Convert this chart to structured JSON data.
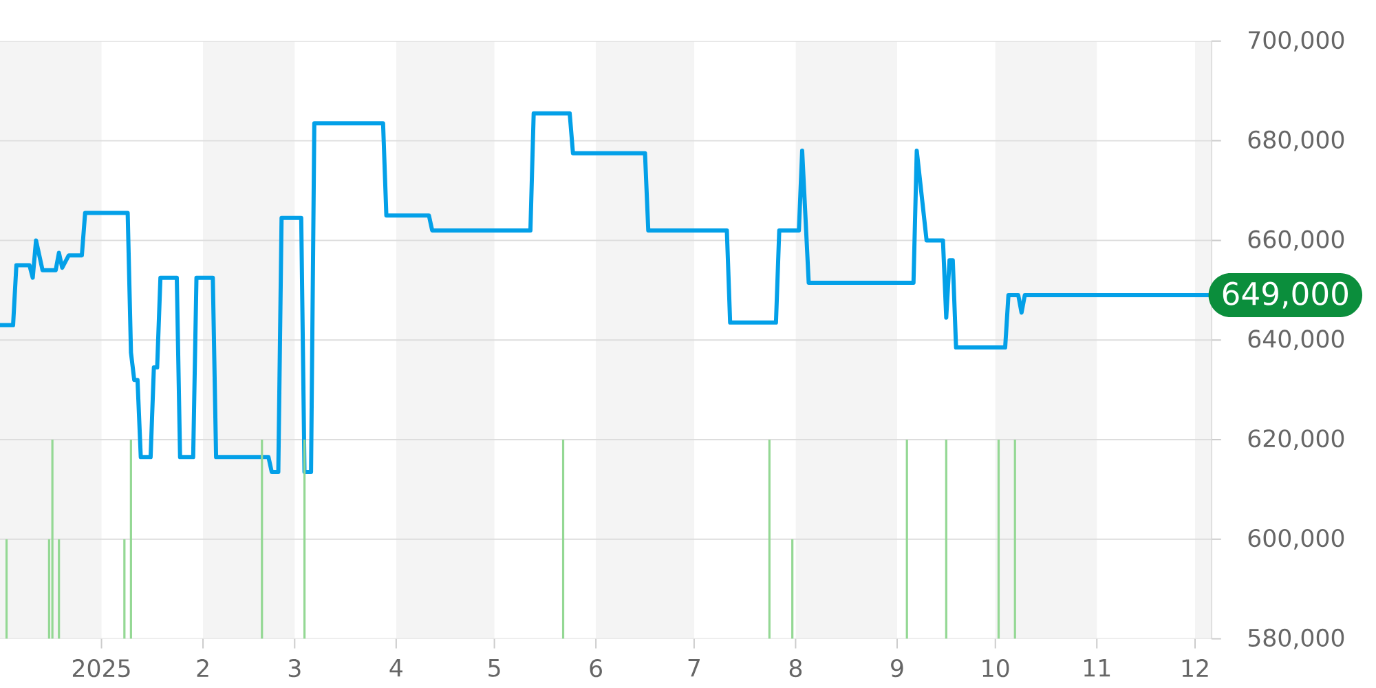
{
  "chart_data": {
    "type": "line",
    "series": [
      {
        "color": "#03a0e8",
        "x": [
          "2024-12-01",
          "2024-12-05",
          "2024-12-06",
          "2024-12-10",
          "2024-12-11",
          "2024-12-12",
          "2024-12-14",
          "2024-12-18",
          "2024-12-19",
          "2024-12-20",
          "2024-12-22",
          "2024-12-26",
          "2024-12-27",
          "2025-01-09",
          "2025-01-10",
          "2025-01-11",
          "2025-01-12",
          "2025-01-13",
          "2025-01-16",
          "2025-01-17",
          "2025-01-18",
          "2025-01-19",
          "2025-01-24",
          "2025-01-25",
          "2025-01-29",
          "2025-01-30",
          "2025-02-04",
          "2025-02-05",
          "2025-02-21",
          "2025-02-22",
          "2025-02-24",
          "2025-02-25",
          "2025-03-03",
          "2025-03-04",
          "2025-03-06",
          "2025-03-07",
          "2025-03-28",
          "2025-03-29",
          "2025-04-11",
          "2025-04-12",
          "2025-05-12",
          "2025-05-13",
          "2025-05-24",
          "2025-05-25",
          "2025-06-16",
          "2025-06-17",
          "2025-07-11",
          "2025-07-12",
          "2025-07-26",
          "2025-07-27",
          "2025-08-02",
          "2025-08-03",
          "2025-08-05",
          "2025-09-06",
          "2025-09-07",
          "2025-09-10",
          "2025-09-15",
          "2025-09-16",
          "2025-09-17",
          "2025-09-18",
          "2025-09-19",
          "2025-10-04",
          "2025-10-05",
          "2025-10-08",
          "2025-10-09",
          "2025-10-10",
          "2025-12-05"
        ],
        "values": [
          643000,
          643000,
          655000,
          655000,
          652500,
          660000,
          654000,
          654000,
          657500,
          654500,
          657000,
          657000,
          665500,
          665500,
          637500,
          632000,
          632000,
          616500,
          616500,
          634500,
          634500,
          652500,
          652500,
          616500,
          616500,
          652500,
          652500,
          616500,
          616500,
          613500,
          613500,
          664500,
          664500,
          613500,
          613500,
          683500,
          683500,
          665000,
          665000,
          662000,
          662000,
          685500,
          685500,
          677500,
          677500,
          662000,
          662000,
          643500,
          643500,
          662000,
          662000,
          678000,
          651500,
          651500,
          678000,
          660000,
          660000,
          644500,
          656000,
          656000,
          638500,
          638500,
          649000,
          649000,
          645500,
          649000,
          649000
        ]
      },
      {
        "type": "bar",
        "color": "#94d894",
        "x": [
          "2024-12-03",
          "2024-12-16",
          "2024-12-17",
          "2024-12-19",
          "2025-01-08",
          "2025-01-10",
          "2025-02-19",
          "2025-03-04",
          "2025-05-22",
          "2025-07-24",
          "2025-07-31",
          "2025-09-04",
          "2025-09-16",
          "2025-10-02",
          "2025-10-07"
        ],
        "values": [
          600000,
          600000,
          620000,
          600000,
          600000,
          620000,
          620000,
          620000,
          620000,
          620000,
          600000,
          620000,
          620000,
          620000,
          620000
        ]
      }
    ],
    "xlim": [
      "2024-12-01",
      "2025-12-06"
    ],
    "xticks": [
      {
        "value": "2025-01-01",
        "label": "2025"
      },
      {
        "value": "2025-02-01",
        "label": "2"
      },
      {
        "value": "2025-03-01",
        "label": "3"
      },
      {
        "value": "2025-04-01",
        "label": "4"
      },
      {
        "value": "2025-05-01",
        "label": "5"
      },
      {
        "value": "2025-06-01",
        "label": "6"
      },
      {
        "value": "2025-07-01",
        "label": "7"
      },
      {
        "value": "2025-08-01",
        "label": "8"
      },
      {
        "value": "2025-09-01",
        "label": "9"
      },
      {
        "value": "2025-10-01",
        "label": "10"
      },
      {
        "value": "2025-11-01",
        "label": "11"
      },
      {
        "value": "2025-12-01",
        "label": "12"
      }
    ],
    "ylim": [
      580000,
      700000
    ],
    "yticks": [
      {
        "value": 580000,
        "label": "580,000"
      },
      {
        "value": 600000,
        "label": "600,000"
      },
      {
        "value": 620000,
        "label": "620,000"
      },
      {
        "value": 640000,
        "label": "640,000"
      },
      {
        "value": 660000,
        "label": "660,000"
      },
      {
        "value": 680000,
        "label": "680,000"
      },
      {
        "value": 700000,
        "label": "700,000"
      }
    ],
    "grid": "y",
    "bands": [
      {
        "axis": "x",
        "from": "2024-12-01",
        "to": "2025-01-01",
        "color": "#f4f4f4"
      },
      {
        "axis": "x",
        "from": "2025-02-01",
        "to": "2025-03-01",
        "color": "#f4f4f4"
      },
      {
        "axis": "x",
        "from": "2025-04-01",
        "to": "2025-05-01",
        "color": "#f4f4f4"
      },
      {
        "axis": "x",
        "from": "2025-06-01",
        "to": "2025-07-01",
        "color": "#f4f4f4"
      },
      {
        "axis": "x",
        "from": "2025-08-01",
        "to": "2025-09-01",
        "color": "#f4f4f4"
      },
      {
        "axis": "x",
        "from": "2025-10-01",
        "to": "2025-11-01",
        "color": "#f4f4f4"
      },
      {
        "axis": "x",
        "from": "2025-12-01",
        "to": "2025-12-06",
        "color": "#f4f4f4"
      }
    ],
    "annotations": [
      {
        "text": "649,000",
        "x": "2025-12-05",
        "y": 649000
      }
    ]
  }
}
